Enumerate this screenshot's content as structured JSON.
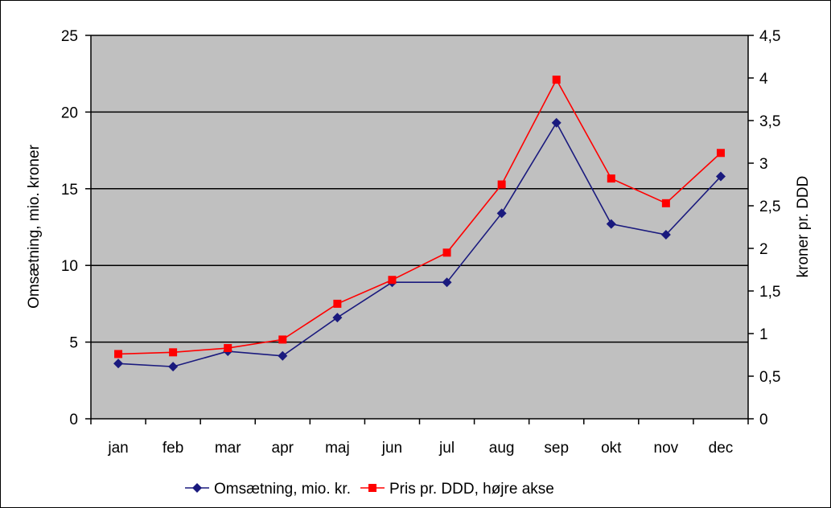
{
  "chart_data": {
    "type": "line",
    "categories": [
      "jan",
      "feb",
      "mar",
      "apr",
      "maj",
      "jun",
      "jul",
      "aug",
      "sep",
      "okt",
      "nov",
      "dec"
    ],
    "series": [
      {
        "name": "Omsætning, mio. kr.",
        "axis": "left",
        "color": "#1a1a7e",
        "marker": "diamond",
        "values": [
          3.6,
          3.4,
          4.4,
          4.1,
          6.6,
          8.9,
          8.9,
          13.4,
          19.3,
          12.7,
          12.0,
          15.8
        ]
      },
      {
        "name": "Pris pr. DDD, højre akse",
        "axis": "right",
        "color": "#ff0000",
        "marker": "square",
        "values": [
          0.76,
          0.78,
          0.83,
          0.93,
          1.35,
          1.63,
          1.95,
          2.75,
          3.98,
          2.82,
          2.53,
          3.12
        ]
      }
    ],
    "ylabel": "Omsætning, mio. kroner",
    "y2label": "kroner pr. DDD",
    "ylim": [
      0,
      25
    ],
    "y2lim": [
      0,
      4.5
    ],
    "yticks": [
      "0",
      "5",
      "10",
      "15",
      "20",
      "25"
    ],
    "y2ticks": [
      "0",
      "0,5",
      "1",
      "1,5",
      "2",
      "2,5",
      "3",
      "3,5",
      "4",
      "4,5"
    ],
    "grid": true,
    "plot_background": "#c0c0c0",
    "legend_position": "bottom"
  }
}
